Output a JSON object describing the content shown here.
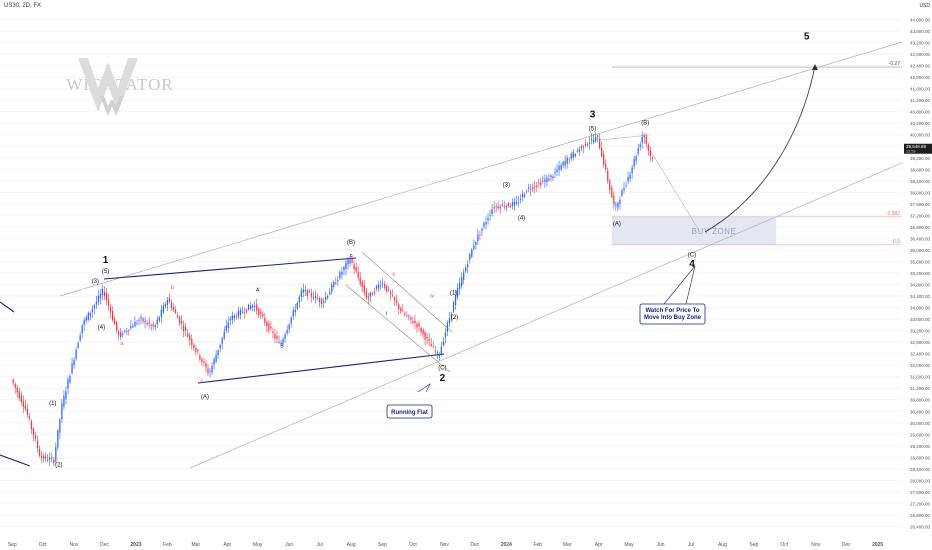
{
  "header": {
    "symbol": "US30, 2D, FX",
    "currency": "USD"
  },
  "watermark": {
    "text": "WICKTATOR",
    "letter": "W"
  },
  "colors": {
    "up": "#2962ff",
    "down": "#f23645",
    "channel": "#b0b0b0",
    "flat": "#1a237e",
    "buyzone": "#e3e7f2",
    "fib": "#f2a5ab",
    "axis_text": "#555555",
    "grid": "#f4f4f4"
  },
  "chart_data": {
    "type": "candlestick",
    "title": "",
    "xlabel": "",
    "ylabel": "",
    "ylim": [
      26000,
      44400
    ],
    "y_ticks": [
      "44,000.00",
      "43,600.00",
      "43,200.00",
      "42,800.00",
      "42,400.00",
      "42,000.00",
      "41,600.00",
      "41,200.00",
      "40,800.00",
      "40,400.00",
      "40,000.00",
      "39,600.00",
      "39,200.00",
      "38,800.00",
      "38,400.00",
      "38,000.00",
      "37,600.00",
      "37,200.00",
      "36,800.00",
      "36,400.00",
      "36,000.00",
      "35,600.00",
      "35,200.00",
      "34,800.00",
      "34,400.00",
      "34,000.00",
      "33,600.00",
      "33,200.00",
      "32,800.00",
      "32,400.00",
      "32,000.00",
      "31,600.00",
      "31,200.00",
      "30,800.00",
      "30,400.00",
      "30,000.00",
      "29,600.00",
      "29,200.00",
      "28,800.00",
      "28,400.00",
      "28,000.00",
      "27,600.00",
      "27,200.00",
      "26,800.00",
      "26,400.00"
    ],
    "x_ticks": [
      {
        "label": "Sep",
        "date": "2022-09-01"
      },
      {
        "label": "Oct",
        "date": "2022-10-01"
      },
      {
        "label": "Nov",
        "date": "2022-11-01"
      },
      {
        "label": "Dec",
        "date": "2022-12-01"
      },
      {
        "label": "2023",
        "date": "2023-01-01",
        "bold": true
      },
      {
        "label": "Feb",
        "date": "2023-02-01"
      },
      {
        "label": "Mar",
        "date": "2023-03-01"
      },
      {
        "label": "Apr",
        "date": "2023-04-01"
      },
      {
        "label": "May",
        "date": "2023-05-01"
      },
      {
        "label": "Jun",
        "date": "2023-06-01"
      },
      {
        "label": "Jul",
        "date": "2023-07-01"
      },
      {
        "label": "Aug",
        "date": "2023-08-01"
      },
      {
        "label": "Sep",
        "date": "2023-09-01"
      },
      {
        "label": "Oct",
        "date": "2023-10-01"
      },
      {
        "label": "Nov",
        "date": "2023-11-01"
      },
      {
        "label": "Dec",
        "date": "2023-12-01"
      },
      {
        "label": "2024",
        "date": "2024-01-01",
        "bold": true
      },
      {
        "label": "Feb",
        "date": "2024-02-01"
      },
      {
        "label": "Mar",
        "date": "2024-03-01"
      },
      {
        "label": "Apr",
        "date": "2024-04-01"
      },
      {
        "label": "May",
        "date": "2024-05-01"
      },
      {
        "label": "Jun",
        "date": "2024-06-01"
      },
      {
        "label": "Jul",
        "date": "2024-07-01"
      },
      {
        "label": "Aug",
        "date": "2024-08-01"
      },
      {
        "label": "Sep",
        "date": "2024-09-01"
      },
      {
        "label": "Oct",
        "date": "2024-10-01"
      },
      {
        "label": "Nov",
        "date": "2024-11-01"
      },
      {
        "label": "Dec",
        "date": "2024-12-01"
      },
      {
        "label": "2025",
        "date": "2025-01-01",
        "bold": true
      }
    ],
    "x_range": [
      "2022-08-20",
      "2025-01-25"
    ],
    "price_anchors": [
      [
        "2022-09-01",
        31500
      ],
      [
        "2022-09-15",
        30500
      ],
      [
        "2022-09-30",
        28800
      ],
      [
        "2022-10-13",
        28700
      ],
      [
        "2022-10-21",
        30600
      ],
      [
        "2022-11-10",
        33400
      ],
      [
        "2022-12-01",
        34600
      ],
      [
        "2022-12-16",
        33000
      ],
      [
        "2023-01-06",
        33600
      ],
      [
        "2023-01-20",
        33300
      ],
      [
        "2023-02-02",
        34300
      ],
      [
        "2023-02-24",
        32900
      ],
      [
        "2023-03-15",
        31700
      ],
      [
        "2023-04-04",
        33600
      ],
      [
        "2023-04-28",
        34100
      ],
      [
        "2023-05-24",
        32700
      ],
      [
        "2023-06-15",
        34600
      ],
      [
        "2023-07-05",
        34200
      ],
      [
        "2023-08-01",
        35700
      ],
      [
        "2023-08-18",
        34300
      ],
      [
        "2023-09-01",
        34900
      ],
      [
        "2023-09-22",
        33800
      ],
      [
        "2023-10-06",
        33400
      ],
      [
        "2023-10-27",
        32300
      ],
      [
        "2023-11-14",
        34500
      ],
      [
        "2023-12-01",
        36200
      ],
      [
        "2023-12-20",
        37500
      ],
      [
        "2024-01-12",
        37600
      ],
      [
        "2024-01-22",
        38100
      ],
      [
        "2024-02-14",
        38500
      ],
      [
        "2024-03-01",
        39100
      ],
      [
        "2024-03-20",
        39700
      ],
      [
        "2024-04-01",
        39900
      ],
      [
        "2024-04-18",
        37400
      ],
      [
        "2024-05-03",
        38700
      ],
      [
        "2024-05-16",
        40050
      ],
      [
        "2024-05-23",
        39250
      ]
    ],
    "last_price": {
      "value": 39548.88,
      "label": "39,548.88",
      "countdown": "12:59"
    },
    "waves": [
      {
        "label": "1",
        "date": "2022-12-02",
        "price": 35550,
        "big": true
      },
      {
        "label": "(5)",
        "date": "2022-12-02",
        "price": 35200
      },
      {
        "label": "(3)",
        "date": "2022-11-22",
        "price": 34850
      },
      {
        "label": "(4)",
        "date": "2022-11-28",
        "price": 33250
      },
      {
        "label": "(1)",
        "date": "2022-10-11",
        "price": 30620
      },
      {
        "label": "(2)",
        "date": "2022-10-17",
        "price": 28480
      },
      {
        "label": "a",
        "date": "2022-12-18",
        "price": 32700,
        "red": true
      },
      {
        "label": "b",
        "date": "2023-02-06",
        "price": 34650,
        "red": true
      },
      {
        "label": "c",
        "date": "2023-03-07",
        "price": 31400,
        "red": true
      },
      {
        "label": "A",
        "date": "2023-05-01",
        "price": 34550
      },
      {
        "label": "B",
        "date": "2023-05-25",
        "price": 32620
      },
      {
        "label": "(A)",
        "date": "2023-03-10",
        "price": 30850
      },
      {
        "label": "(B)",
        "date": "2023-08-01",
        "price": 36200
      },
      {
        "label": "c",
        "date": "2023-08-01",
        "price": 35750
      },
      {
        "label": "ii",
        "date": "2023-09-12",
        "price": 35100,
        "red": true
      },
      {
        "label": "i",
        "date": "2023-09-05",
        "price": 33750
      },
      {
        "label": "iii",
        "date": "2023-10-12",
        "price": 33050,
        "red": true
      },
      {
        "label": "iv",
        "date": "2023-10-20",
        "price": 34350,
        "red": true
      },
      {
        "label": "v",
        "date": "2023-11-01",
        "price": 32700,
        "red": true
      },
      {
        "label": "(1)",
        "date": "2023-11-10",
        "price": 34450
      },
      {
        "label": "(2)",
        "date": "2023-11-11",
        "price": 33600
      },
      {
        "label": "(C)",
        "date": "2023-10-30",
        "price": 31850
      },
      {
        "label": "2",
        "date": "2023-10-30",
        "price": 31450,
        "big": true
      },
      {
        "label": "(3)",
        "date": "2024-01-01",
        "price": 38200
      },
      {
        "label": "(4)",
        "date": "2024-01-16",
        "price": 37050
      },
      {
        "label": "3",
        "date": "2024-03-26",
        "price": 40600,
        "big": true
      },
      {
        "label": "(5)",
        "date": "2024-03-26",
        "price": 40150
      },
      {
        "label": "(A)",
        "date": "2024-04-19",
        "price": 36850
      },
      {
        "label": "(B)",
        "date": "2024-05-17",
        "price": 40350
      },
      {
        "label": "(C)",
        "date": "2024-07-02",
        "price": 35770
      },
      {
        "label": "4",
        "date": "2024-07-02",
        "price": 35400,
        "big": true
      },
      {
        "label": "5",
        "date": "2024-10-23",
        "price": 43300,
        "big": true
      }
    ],
    "buy_zone": {
      "label": "BUY ZONE",
      "from": "2024-04-14",
      "to": "2024-09-23",
      "top": 37150,
      "bottom": 36180
    },
    "fib_levels": [
      {
        "label": "0.382",
        "price": 37150,
        "from": "2024-04-14"
      },
      {
        "label": "0.5",
        "price": 36180,
        "from": "2024-04-14"
      },
      {
        "label": "-0.27",
        "price": 42350,
        "from": "2024-04-14"
      }
    ],
    "annotations": [
      {
        "text": "Running Flat"
      },
      {
        "text": "Watch For Price To\nMove Into Buy Zone"
      }
    ]
  }
}
